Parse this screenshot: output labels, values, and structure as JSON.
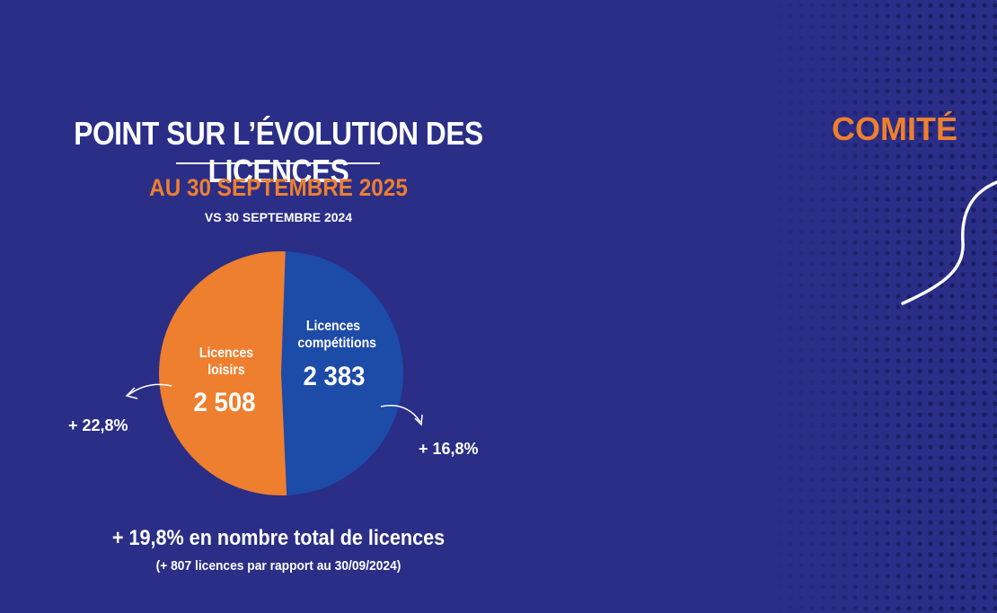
{
  "title": "POINT SUR L’ÉVOLUTION DES LICENCES",
  "subtitle": "AU 30 SEPTEMBRE 2025",
  "comparison": "VS 30 SEPTEMBRE 2024",
  "brand": "COMITÉ",
  "colors": {
    "background": "#2a2e87",
    "loisirs": "#ee7f2f",
    "competitions": "#1d4ba8",
    "accent": "#ee7f2f"
  },
  "chart_data": {
    "type": "pie",
    "slices": [
      {
        "label": "Licences loisirs",
        "value": 2508,
        "display": "2 508",
        "change": "+ 22,8%"
      },
      {
        "label": "Licences compétitions",
        "value": 2383,
        "display": "2 383",
        "change": "+ 16,8%"
      }
    ]
  },
  "summary": {
    "total_change": "+ 19,8% en nombre total de licences",
    "detail": "(+ 807 licences par rapport au 30/09/2024)"
  }
}
